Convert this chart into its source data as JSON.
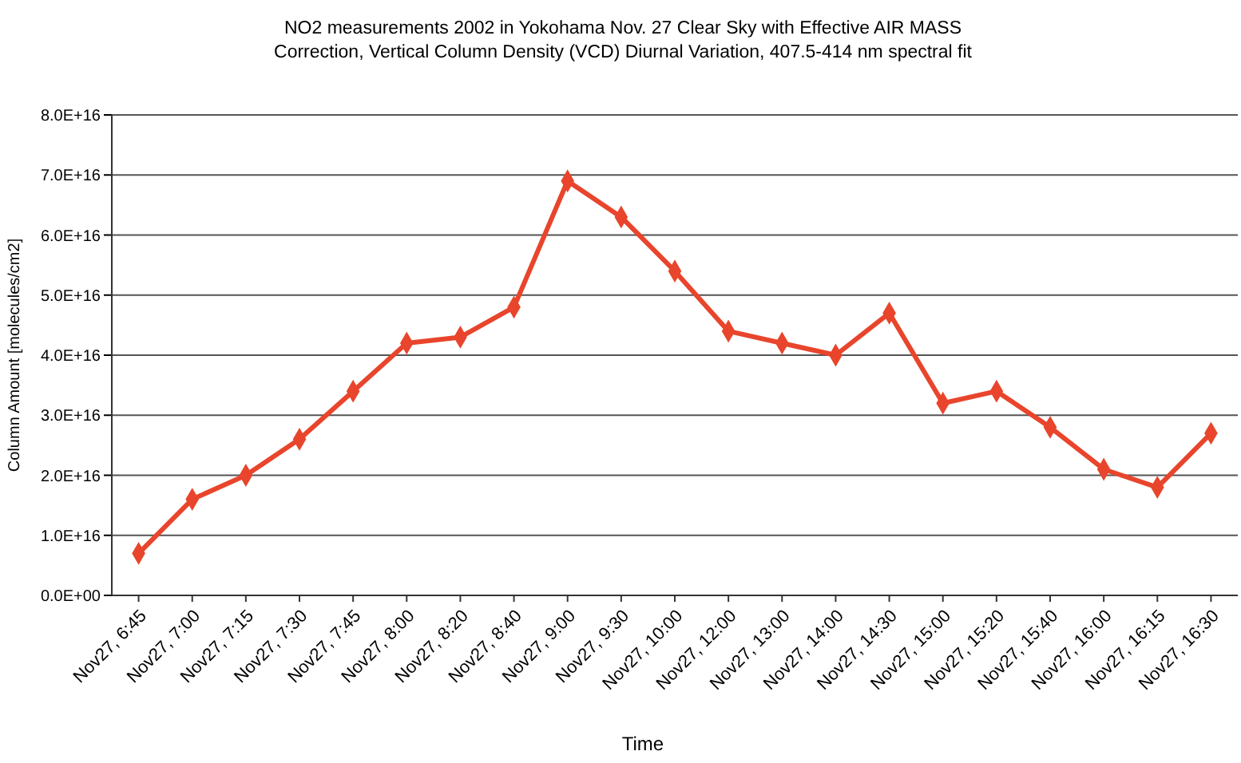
{
  "chart_data": {
    "type": "line",
    "title": "NO2 measurements 2002 in Yokohama Nov. 27 Clear Sky  with Effective AIR MASS\nCorrection, Vertical Column Density (VCD)  Diurnal Variation, 407.5-414 nm spectral fit",
    "xlabel": "Time",
    "ylabel": "Column Amount [molecules/cm2]",
    "categories": [
      "Nov27, 6:45",
      "Nov27, 7:00",
      "Nov27, 7:15",
      "Nov27, 7:30",
      "Nov27, 7:45",
      "Nov27, 8:00",
      "Nov27, 8:20",
      "Nov27, 8:40",
      "Nov27, 9:00",
      "Nov27, 9:30",
      "Nov27, 10:00",
      "Nov27, 12:00",
      "Nov27, 13:00",
      "Nov27, 14:00",
      "Nov27, 14:30",
      "Nov27, 15:00",
      "Nov27, 15:20",
      "Nov27, 15:40",
      "Nov27, 16:00",
      "Nov27, 16:15",
      "Nov27, 16:30"
    ],
    "series": [
      {
        "color": "#e8452c",
        "values": [
          7000000000000000.0,
          1.6e+16,
          2e+16,
          2.6e+16,
          3.4e+16,
          4.2e+16,
          4.3e+16,
          4.8e+16,
          6.9e+16,
          6.3e+16,
          5.4e+16,
          4.4e+16,
          4.2e+16,
          4e+16,
          4.7e+16,
          3.2e+16,
          3.4e+16,
          2.8e+16,
          2.1e+16,
          1.8e+16,
          2.7e+16
        ]
      }
    ],
    "ylim": [
      0,
      8e+16
    ],
    "yticks": [
      {
        "value": 0,
        "label": "0.0E+00"
      },
      {
        "value": 1e+16,
        "label": "1.0E+16"
      },
      {
        "value": 2e+16,
        "label": "2.0E+16"
      },
      {
        "value": 3e+16,
        "label": "3.0E+16"
      },
      {
        "value": 4e+16,
        "label": "4.0E+16"
      },
      {
        "value": 5e+16,
        "label": "5.0E+16"
      },
      {
        "value": 6e+16,
        "label": "6.0E+16"
      },
      {
        "value": 7e+16,
        "label": "7.0E+16"
      },
      {
        "value": 8e+16,
        "label": "8.0E+16"
      }
    ],
    "grid": "y",
    "marker": "diamond",
    "line_style": "solid"
  }
}
